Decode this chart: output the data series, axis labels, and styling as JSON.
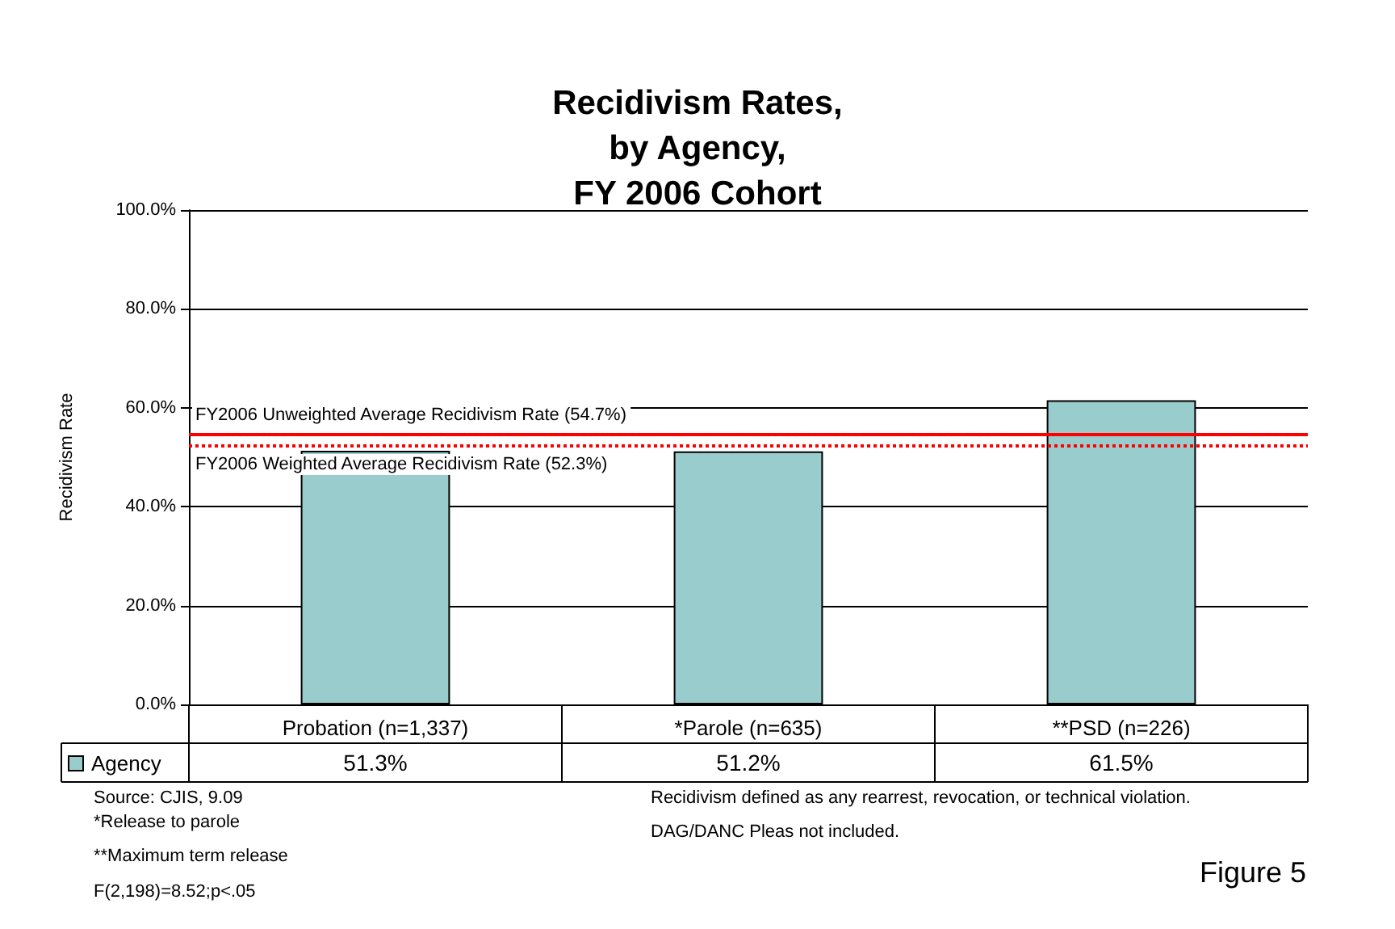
{
  "chart_data": {
    "type": "bar",
    "title": "Recidivism Rates,\nby Agency,\nFY 2006 Cohort",
    "ylabel": "Recidivism Rate",
    "categories": [
      "Probation (n=1,337)",
      "*Parole (n=635)",
      "**PSD (n=226)"
    ],
    "series": [
      {
        "name": "Agency",
        "color": "#99cccc",
        "values": [
          51.3,
          51.2,
          61.5
        ],
        "value_labels": [
          "51.3%",
          "51.2%",
          "61.5%"
        ]
      }
    ],
    "ylim": [
      0,
      100
    ],
    "yticks": [
      {
        "value": 0,
        "label": "0.0%"
      },
      {
        "value": 20,
        "label": "20.0%"
      },
      {
        "value": 40,
        "label": "40.0%"
      },
      {
        "value": 60,
        "label": "60.0%"
      },
      {
        "value": 80,
        "label": "80.0%"
      },
      {
        "value": 100,
        "label": "100.0%"
      }
    ],
    "grid": "y",
    "legend": "bottom left",
    "ref_lines": [
      {
        "axis": "y",
        "value": 54.7,
        "label": "FY2006 Unweighted Average Recidivism Rate (54.7%)",
        "color": "#ff0000",
        "line_style": "solid"
      },
      {
        "axis": "y",
        "value": 52.3,
        "label": "FY2006 Weighted Average Recidivism Rate (52.3%)",
        "color": "#ff0000",
        "line_style": "dotted"
      }
    ],
    "annotations": [
      "Source: CJIS, 9.09",
      "*Release to parole",
      "**Maximum term release",
      "F(2,198)=8.52;p<.05",
      "Recidivism defined as any rearrest, revocation, or technical violation.",
      "DAG/DANC Pleas not included.",
      "Figure 5"
    ]
  }
}
